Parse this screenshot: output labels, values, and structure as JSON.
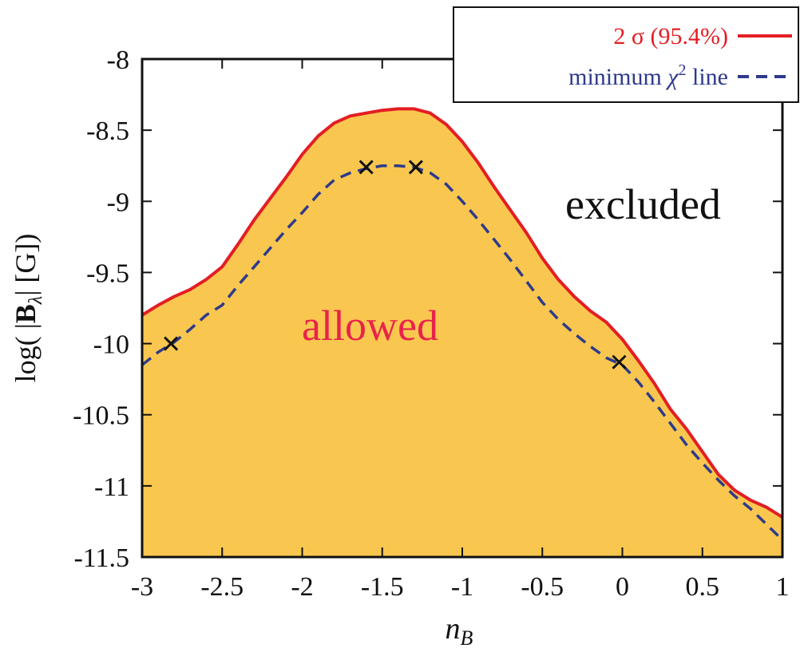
{
  "chart_data": {
    "type": "area",
    "xlabel": "n",
    "xlabel_sub": "B",
    "ylabel_prefix": "log( |",
    "ylabel_bold": "B",
    "ylabel_sub": "λ",
    "ylabel_suffix": "| [G])",
    "xlim": [
      -3,
      1
    ],
    "ylim": [
      -11.5,
      -8
    ],
    "xticks": [
      "-3",
      "-2.5",
      "-2",
      "-1.5",
      "-1",
      "-0.5",
      "0",
      "0.5",
      "1"
    ],
    "yticks": [
      "-8",
      "-8.5",
      "-9",
      "-9.5",
      "-10",
      "-10.5",
      "-11",
      "-11.5"
    ],
    "xtick_values": [
      -3,
      -2.5,
      -2,
      -1.5,
      -1,
      -0.5,
      0,
      0.5,
      1
    ],
    "ytick_values": [
      -8,
      -8.5,
      -9,
      -9.5,
      -10,
      -10.5,
      -11,
      -11.5
    ],
    "series": [
      {
        "name": "2 σ (95.4%)",
        "style": "solid",
        "fill": "#f9c74f",
        "color": "#e31e24",
        "x": [
          -3.0,
          -2.9,
          -2.8,
          -2.7,
          -2.6,
          -2.5,
          -2.4,
          -2.3,
          -2.2,
          -2.1,
          -2.0,
          -1.9,
          -1.8,
          -1.7,
          -1.6,
          -1.5,
          -1.4,
          -1.3,
          -1.2,
          -1.1,
          -1.0,
          -0.9,
          -0.8,
          -0.7,
          -0.6,
          -0.5,
          -0.4,
          -0.3,
          -0.2,
          -0.1,
          0.0,
          0.1,
          0.2,
          0.3,
          0.4,
          0.5,
          0.6,
          0.7,
          0.8,
          0.9,
          1.0
        ],
        "y": [
          -9.8,
          -9.73,
          -9.67,
          -9.62,
          -9.55,
          -9.46,
          -9.3,
          -9.13,
          -8.98,
          -8.83,
          -8.67,
          -8.54,
          -8.45,
          -8.4,
          -8.38,
          -8.36,
          -8.35,
          -8.35,
          -8.38,
          -8.46,
          -8.58,
          -8.73,
          -8.9,
          -9.06,
          -9.22,
          -9.4,
          -9.55,
          -9.67,
          -9.77,
          -9.85,
          -9.97,
          -10.12,
          -10.28,
          -10.46,
          -10.6,
          -10.76,
          -10.92,
          -11.03,
          -11.1,
          -11.15,
          -11.22
        ]
      },
      {
        "name": "minimum χ² line",
        "legend_main": "minimum ",
        "legend_chi": "χ",
        "legend_sup": "2",
        "legend_tail": " line",
        "style": "dashed",
        "color": "#2e3a8c",
        "x": [
          -3.0,
          -2.9,
          -2.8,
          -2.7,
          -2.6,
          -2.5,
          -2.4,
          -2.3,
          -2.2,
          -2.1,
          -2.0,
          -1.9,
          -1.8,
          -1.7,
          -1.6,
          -1.5,
          -1.4,
          -1.3,
          -1.2,
          -1.1,
          -1.0,
          -0.9,
          -0.8,
          -0.7,
          -0.6,
          -0.5,
          -0.4,
          -0.3,
          -0.2,
          -0.1,
          0.0,
          0.1,
          0.2,
          0.3,
          0.4,
          0.5,
          0.6,
          0.7,
          0.8,
          0.9,
          1.0
        ],
        "y": [
          -10.15,
          -10.06,
          -9.99,
          -9.9,
          -9.8,
          -9.73,
          -9.59,
          -9.46,
          -9.33,
          -9.2,
          -9.08,
          -8.95,
          -8.85,
          -8.8,
          -8.77,
          -8.75,
          -8.75,
          -8.76,
          -8.8,
          -8.88,
          -9.0,
          -9.13,
          -9.27,
          -9.41,
          -9.56,
          -9.71,
          -9.83,
          -9.93,
          -10.02,
          -10.1,
          -10.15,
          -10.27,
          -10.41,
          -10.56,
          -10.71,
          -10.84,
          -10.96,
          -11.07,
          -11.16,
          -11.27,
          -11.38
        ]
      }
    ],
    "markers": [
      {
        "x": -2.82,
        "y": -10.0
      },
      {
        "x": -1.6,
        "y": -8.76
      },
      {
        "x": -1.29,
        "y": -8.76
      },
      {
        "x": -0.02,
        "y": -10.13
      }
    ],
    "annotations": [
      {
        "text": "excluded",
        "color": "#111111"
      },
      {
        "text": "allowed",
        "color": "#e8234a"
      }
    ],
    "legend_position": "top-right",
    "grid": false
  }
}
